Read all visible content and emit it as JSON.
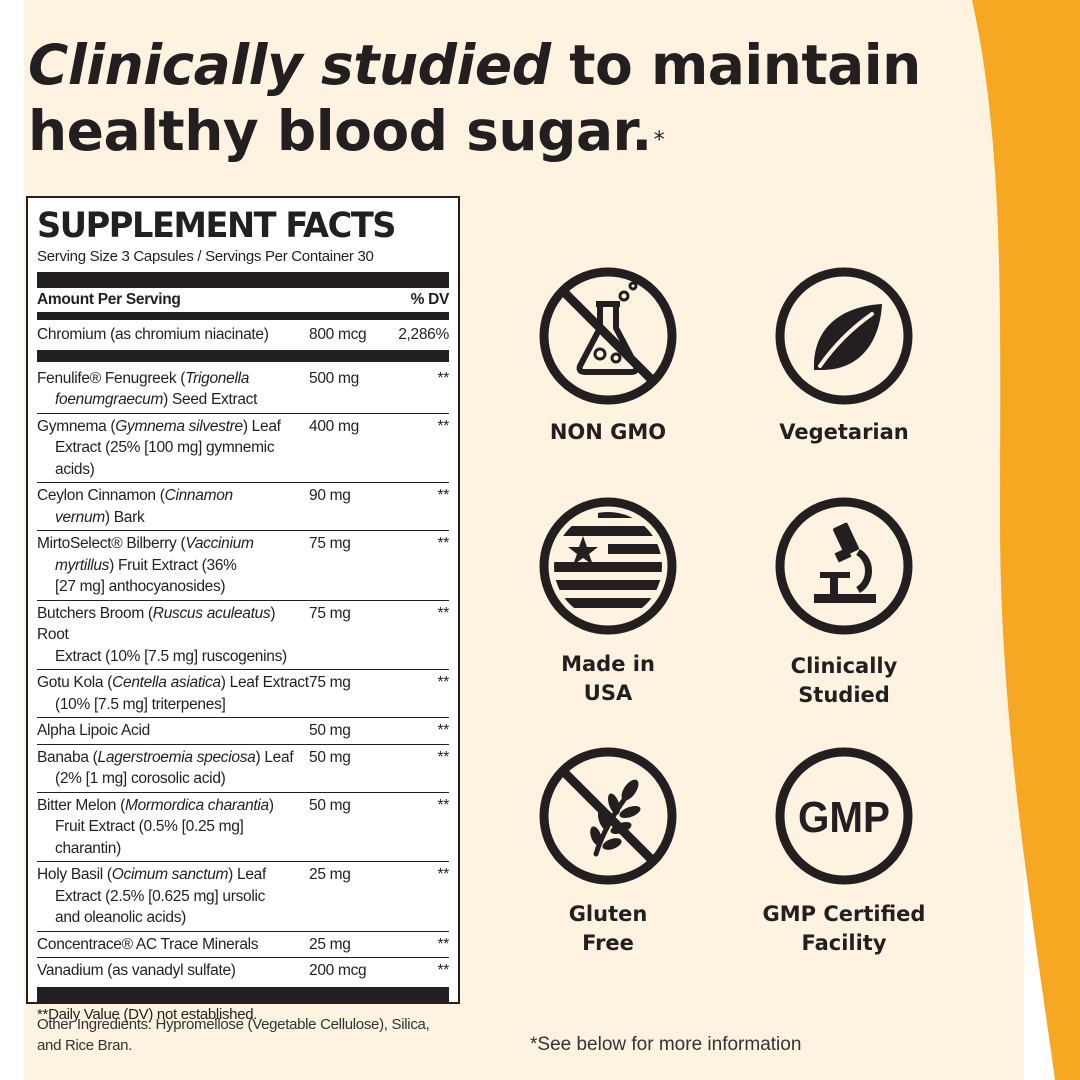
{
  "headline": {
    "emphasis": "Clinically studied",
    "rest_line1": " to maintain",
    "line2": "healthy blood sugar.",
    "asterisk": "*"
  },
  "facts": {
    "title": "SUPPLEMENT FACTS",
    "serving": "Serving Size 3 Capsules / Servings Per Container 30",
    "amount_label": "Amount Per Serving",
    "dv_label": "% DV",
    "top_row": {
      "name": "Chromium (as chromium niacinate)",
      "amount": "800 mcg",
      "dv": "2,286%"
    },
    "rows": [
      {
        "line1a": "Fenulife® Fenugreek (",
        "line1i": "Trigonella",
        "line1b": "",
        "line2i": "foenumgraecum",
        "line2b": ") Seed Extract",
        "line3": "",
        "amount": "500 mg",
        "dv": "**"
      },
      {
        "line1a": "Gymnema (",
        "line1i": "Gymnema silvestre",
        "line1b": ") Leaf",
        "line2i": "",
        "line2b": "Extract (25% [100 mg] gymnemic acids)",
        "line3": "",
        "amount": "400 mg",
        "dv": "**"
      },
      {
        "line1a": "Ceylon Cinnamon (",
        "line1i": "Cinnamon",
        "line1b": "",
        "line2i": "vernum",
        "line2b": ") Bark",
        "line3": "",
        "amount": "90 mg",
        "dv": "**"
      },
      {
        "line1a": "MirtoSelect® Bilberry (",
        "line1i": "Vaccinium",
        "line1b": "",
        "line2i": "myrtillus",
        "line2b": ") Fruit Extract (36%",
        "line3": "[27 mg] anthocyanosides)",
        "amount": "75 mg",
        "dv": "**"
      },
      {
        "line1a": "Butchers Broom (",
        "line1i": "Ruscus aculeatus",
        "line1b": ") Root",
        "line2i": "",
        "line2b": "Extract (10% [7.5 mg] ruscogenins)",
        "line3": "",
        "amount": "75 mg",
        "dv": "**"
      },
      {
        "line1a": "Gotu Kola (",
        "line1i": "Centella asiatica",
        "line1b": ") Leaf Extract",
        "line2i": "",
        "line2b": "(10% [7.5 mg] triterpenes]",
        "line3": "",
        "amount": "75 mg",
        "dv": "**"
      },
      {
        "line1a": "Alpha Lipoic Acid",
        "line1i": "",
        "line1b": "",
        "line2i": "",
        "line2b": "",
        "line3": "",
        "amount": "50 mg",
        "dv": "**"
      },
      {
        "line1a": "Banaba (",
        "line1i": "Lagerstroemia speciosa",
        "line1b": ") Leaf",
        "line2i": "",
        "line2b": "(2% [1 mg] corosolic acid)",
        "line3": "",
        "amount": "50 mg",
        "dv": "**"
      },
      {
        "line1a": "Bitter Melon (",
        "line1i": "Mormordica charantia",
        "line1b": ")",
        "line2i": "",
        "line2b": "Fruit Extract (0.5% [0.25 mg] charantin)",
        "line3": "",
        "amount": "50 mg",
        "dv": "**"
      },
      {
        "line1a": "Holy Basil (",
        "line1i": "Ocimum sanctum",
        "line1b": ") Leaf",
        "line2i": "",
        "line2b": "Extract (2.5% [0.625 mg] ursolic",
        "line3": "and oleanolic acids)",
        "amount": "25 mg",
        "dv": "**"
      },
      {
        "line1a": "Concentrace® AC Trace Minerals",
        "line1i": "",
        "line1b": "",
        "line2i": "",
        "line2b": "",
        "line3": "",
        "amount": "25 mg",
        "dv": "**"
      },
      {
        "line1a": "Vanadium (as vanadyl sulfate)",
        "line1i": "",
        "line1b": "",
        "line2i": "",
        "line2b": "",
        "line3": "",
        "amount": "200 mcg",
        "dv": "**"
      }
    ],
    "footnote": "**Daily Value (DV) not established."
  },
  "other_ingredients": "Other Ingredients: Hypromellose (Vegetable Cellulose), Silica, and Rice Bran.",
  "badges": {
    "non_gmo": "NON GMO",
    "vegetarian": "Vegetarian",
    "made_in_usa": "Made in\nUSA",
    "clinically_studied": "Clinically\nStudied",
    "gluten_free": "Gluten\nFree",
    "gmp": "GMP Certified\nFacility",
    "gmp_icon_text": "GMP"
  },
  "note": "*See below for more information",
  "colors": {
    "background": "#fdf3e0",
    "accent": "#f7a823",
    "ink": "#231f20"
  }
}
